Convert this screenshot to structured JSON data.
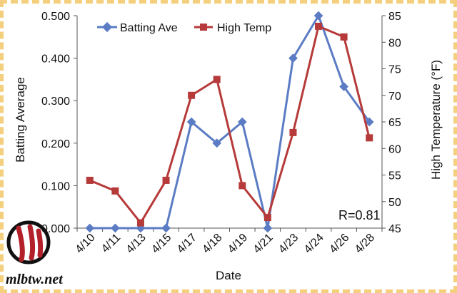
{
  "chart_data": {
    "type": "line",
    "categories": [
      "4/10",
      "4/11",
      "4/13",
      "4/15",
      "4/17",
      "4/18",
      "4/19",
      "4/21",
      "4/23",
      "4/24",
      "4/26",
      "4/28"
    ],
    "series": [
      {
        "name": "Batting Ave",
        "axis": "left",
        "color": "#5b7cc4",
        "marker": "diamond",
        "values": [
          0.0,
          0.0,
          0.0,
          0.0,
          0.25,
          0.2,
          0.25,
          0.0,
          0.4,
          0.5,
          0.333,
          0.25
        ]
      },
      {
        "name": "High Temp",
        "axis": "right",
        "color": "#b63a3a",
        "marker": "square",
        "values": [
          54,
          52,
          46,
          54,
          70,
          73,
          53,
          47,
          63,
          83,
          81,
          62
        ]
      }
    ],
    "xlabel": "Date",
    "ylabel": "Batting Average",
    "y2label": "High Temperature (°F)",
    "ylim": [
      0,
      0.5
    ],
    "y2lim": [
      45,
      85
    ],
    "yticks": [
      "0.000",
      "0.100",
      "0.200",
      "0.300",
      "0.400",
      "0.500"
    ],
    "y2ticks": [
      "45",
      "50",
      "55",
      "60",
      "65",
      "70",
      "75",
      "80",
      "85"
    ],
    "legend": "top-left",
    "grid": false,
    "annotation": "R=0.81"
  },
  "watermark": "mlbtw.net"
}
